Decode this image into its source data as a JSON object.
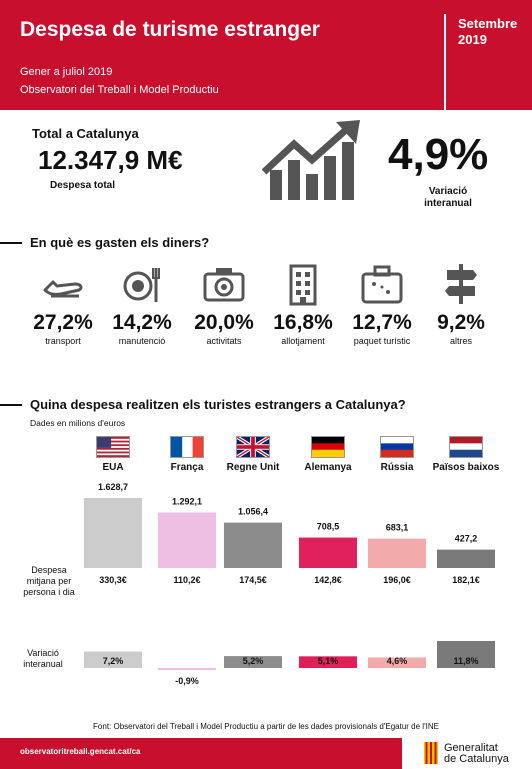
{
  "header": {
    "title": "Despesa de turisme estranger",
    "period": "Gener a juliol 2019",
    "source_org": "Observatori del Treball i Model Productiu",
    "date_line1": "Setembre",
    "date_line2": "2019"
  },
  "kpi": {
    "total_label": "Total a Catalunya",
    "total_value": "12.347,9 M€",
    "total_caption": "Despesa total",
    "variation_value": "4,9%",
    "variation_caption_line1": "Variació",
    "variation_caption_line2": "interanual"
  },
  "section1": {
    "title": "En què es gasten els diners?"
  },
  "categories": [
    {
      "icon": "airplane-icon",
      "pct": "27,2%",
      "label": "transport"
    },
    {
      "icon": "plate-cutlery-icon",
      "pct": "14,2%",
      "label": "manutenció"
    },
    {
      "icon": "camera-icon",
      "pct": "20,0%",
      "label": "activitats"
    },
    {
      "icon": "building-icon",
      "pct": "16,8%",
      "label": "allotjament"
    },
    {
      "icon": "suitcase-icon",
      "pct": "12,7%",
      "label": "paquet turístic"
    },
    {
      "icon": "signpost-icon",
      "pct": "9,2%",
      "label": "altres"
    }
  ],
  "section2": {
    "title": "Quina despesa realitzen els turistes estrangers a Catalunya?"
  },
  "chart_data": {
    "type": "bar",
    "units_note": "Dades en milions d'euros",
    "categories": [
      "EUA",
      "França",
      "Regne Unit",
      "Alemanya",
      "Rússia",
      "Països baixos"
    ],
    "flags": [
      "us-flag-icon",
      "france-flag-icon",
      "uk-flag-icon",
      "germany-flag-icon",
      "russia-flag-icon",
      "netherlands-flag-icon"
    ],
    "colors": [
      "#cccccc",
      "#eebfe2",
      "#8c8c8c",
      "#e0205a",
      "#f3aaaa",
      "#7a7a7a"
    ],
    "spend": {
      "values": [
        1628.7,
        1292.1,
        1056.4,
        708.5,
        683.1,
        427.2
      ],
      "labels": [
        "1.628,7",
        "1.292,1",
        "1.056,4",
        "708,5",
        "683,1",
        "427,2"
      ]
    },
    "per_person": {
      "row_label_lines": [
        "Despesa",
        "mitjana per",
        "persona i dia"
      ],
      "labels": [
        "330,3€",
        "110,2€",
        "174,5€",
        "142,8€",
        "196,0€",
        "182,1€"
      ]
    },
    "variation": {
      "row_label_lines": [
        "Variació",
        "interanual"
      ],
      "values": [
        7.2,
        -0.9,
        5.2,
        5.1,
        4.6,
        11.8
      ],
      "labels": [
        "7,2%",
        "-0,9%",
        "5,2%",
        "5,1%",
        "4,6%",
        "11,8%"
      ]
    }
  },
  "source": "Font: Observatori del Treball i Model Productiu a partir de les dades provisionals d'Egatur de l'INE",
  "footer": {
    "url": "observatoritreball.gencat.cat/ca",
    "brand_line1": "Generalitat",
    "brand_line2": "de Catalunya"
  }
}
